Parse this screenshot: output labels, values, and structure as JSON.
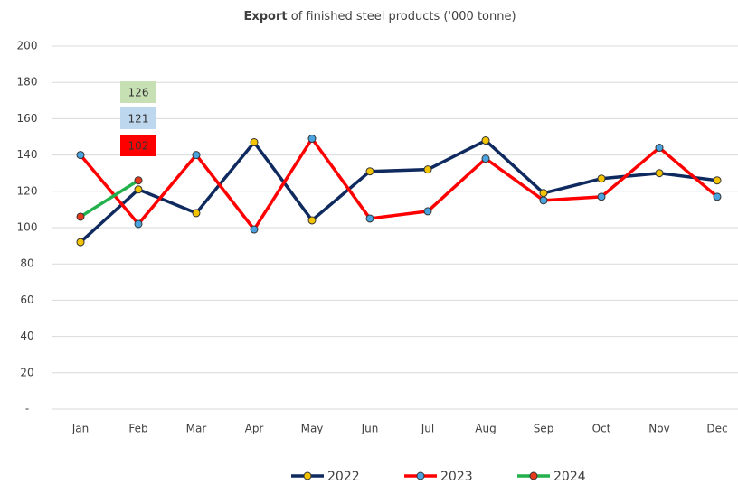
{
  "chart_data": {
    "type": "line",
    "title": [
      "Export",
      "of finished steel products ('000 tonne)"
    ],
    "categories": [
      "Jan",
      "Feb",
      "Mar",
      "Apr",
      "May",
      "Jun",
      "Jul",
      "Aug",
      "Sep",
      "Oct",
      "Nov",
      "Dec"
    ],
    "series": [
      {
        "name": "2022",
        "color": "#0f2a5e",
        "marker_color": "#f5c400",
        "label_color": "#bdd7ee",
        "values": [
          92,
          121,
          108,
          147,
          104,
          131,
          132,
          148,
          119,
          127,
          130,
          126
        ],
        "value_labels": [
          null,
          "121",
          null,
          null,
          null,
          null,
          null,
          null,
          null,
          null,
          null,
          null
        ]
      },
      {
        "name": "2023",
        "color": "#ff0000",
        "marker_color": "#4aa3df",
        "label_color": "#ff0000",
        "values": [
          140,
          102,
          140,
          99,
          149,
          105,
          109,
          138,
          115,
          117,
          144,
          117
        ],
        "value_labels": [
          null,
          "102",
          null,
          null,
          null,
          null,
          null,
          null,
          null,
          null,
          null,
          null
        ]
      },
      {
        "name": "2024",
        "color": "#22b14c",
        "marker_color": "#e8391d",
        "label_color": "#c6e0b4",
        "values": [
          106,
          126,
          null,
          null,
          null,
          null,
          null,
          null,
          null,
          null,
          null,
          null
        ],
        "value_labels": [
          null,
          "126",
          null,
          null,
          null,
          null,
          null,
          null,
          null,
          null,
          null,
          null
        ]
      }
    ],
    "ylim": [
      0,
      200
    ],
    "yticks": [
      {
        "value": 0,
        "label": "-"
      },
      20,
      40,
      60,
      80,
      100,
      120,
      140,
      160,
      180,
      200
    ],
    "grid": true,
    "legend": "bottom"
  }
}
